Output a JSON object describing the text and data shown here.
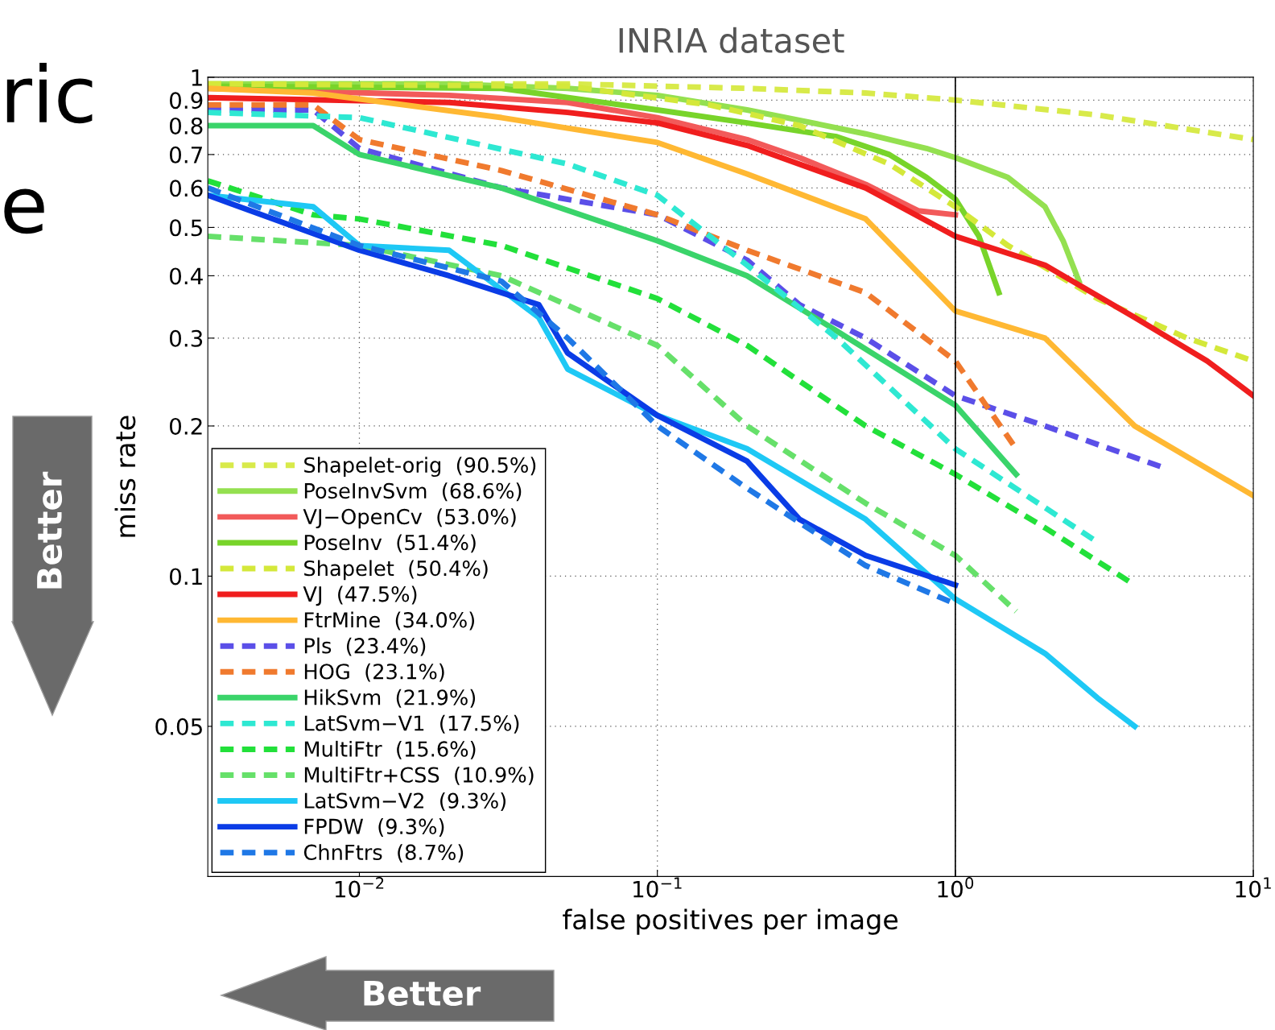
{
  "chart_data": {
    "type": "line",
    "title": "INRIA dataset",
    "xlabel": "false positives per image",
    "ylabel": "miss rate",
    "log": "xy",
    "grid": true,
    "legend": "bottom left",
    "xlim": [
      0.0031,
      10
    ],
    "ylim": [
      0.025,
      1
    ],
    "xticks": [
      {
        "value": 0.01,
        "label": "10$^{−2}$"
      },
      {
        "value": 0.1,
        "label": "10$^{−1}$"
      },
      {
        "value": 1,
        "label": "10$^{0}$"
      },
      {
        "value": 10,
        "label": "10$^{1}$"
      }
    ],
    "yticks": [
      0.05,
      0.1,
      0.2,
      0.3,
      0.4,
      0.5,
      0.6,
      0.7,
      0.8,
      0.9,
      1
    ],
    "ref_lines": [
      {
        "axis": "x",
        "value": 1,
        "color": "#000000"
      }
    ],
    "annotations": [
      "Better",
      "Better",
      "ric",
      "e"
    ],
    "series": [
      {
        "name": "Shapelet-orig  (90.5%)",
        "color": "#d8ea4a",
        "line_style": "dashed",
        "x": [
          0.0031,
          0.05,
          0.2,
          0.5,
          1,
          3,
          10
        ],
        "values": [
          0.97,
          0.97,
          0.95,
          0.93,
          0.9,
          0.84,
          0.75
        ]
      },
      {
        "name": "PoseInvSvm  (68.6%)",
        "color": "#94e050",
        "line_style": "solid",
        "x": [
          0.0031,
          0.02,
          0.05,
          0.1,
          0.2,
          0.3,
          0.5,
          0.8,
          1,
          1.5,
          2,
          2.3,
          2.6
        ],
        "values": [
          0.97,
          0.97,
          0.95,
          0.92,
          0.86,
          0.82,
          0.77,
          0.72,
          0.69,
          0.63,
          0.55,
          0.47,
          0.39
        ]
      },
      {
        "name": "VJ−OpenCv  (53.0%)",
        "color": "#f25a5a",
        "line_style": "solid",
        "x": [
          0.0031,
          0.02,
          0.05,
          0.1,
          0.2,
          0.3,
          0.5,
          0.75,
          1
        ],
        "values": [
          0.95,
          0.92,
          0.89,
          0.83,
          0.75,
          0.69,
          0.61,
          0.54,
          0.53
        ]
      },
      {
        "name": "PoseInv  (51.4%)",
        "color": "#78d42a",
        "line_style": "solid",
        "x": [
          0.0031,
          0.03,
          0.1,
          0.2,
          0.4,
          0.6,
          0.8,
          1,
          1.2,
          1.4
        ],
        "values": [
          0.96,
          0.95,
          0.86,
          0.81,
          0.76,
          0.7,
          0.63,
          0.57,
          0.48,
          0.37
        ]
      },
      {
        "name": "Shapelet  (50.4%)",
        "color": "#d4e83a",
        "line_style": "dashed",
        "x": [
          0.0031,
          0.05,
          0.15,
          0.3,
          0.6,
          1,
          1.5,
          3,
          6,
          10
        ],
        "values": [
          0.97,
          0.96,
          0.88,
          0.8,
          0.67,
          0.55,
          0.46,
          0.36,
          0.3,
          0.27
        ]
      },
      {
        "name": "VJ  (47.5%)",
        "color": "#f01e1e",
        "line_style": "solid",
        "x": [
          0.0031,
          0.02,
          0.05,
          0.1,
          0.2,
          0.5,
          1,
          2,
          4,
          7,
          10
        ],
        "values": [
          0.91,
          0.89,
          0.85,
          0.81,
          0.73,
          0.6,
          0.48,
          0.42,
          0.33,
          0.27,
          0.23
        ]
      },
      {
        "name": "FtrMine  (34.0%)",
        "color": "#ffb833",
        "line_style": "solid",
        "x": [
          0.0031,
          0.007,
          0.03,
          0.1,
          0.2,
          0.5,
          1,
          2,
          4,
          10
        ],
        "values": [
          0.95,
          0.93,
          0.83,
          0.74,
          0.64,
          0.52,
          0.34,
          0.3,
          0.2,
          0.145
        ]
      },
      {
        "name": "Pls  (23.4%)",
        "color": "#5b4fe8",
        "line_style": "dashed",
        "x": [
          0.0031,
          0.007,
          0.01,
          0.03,
          0.1,
          0.2,
          0.3,
          0.5,
          1,
          2,
          5
        ],
        "values": [
          0.86,
          0.86,
          0.72,
          0.6,
          0.53,
          0.43,
          0.35,
          0.3,
          0.23,
          0.2,
          0.165
        ]
      },
      {
        "name": "HOG  (23.1%)",
        "color": "#f07a2e",
        "line_style": "dashed",
        "x": [
          0.0031,
          0.007,
          0.01,
          0.03,
          0.1,
          0.2,
          0.5,
          1,
          1.6
        ],
        "values": [
          0.88,
          0.88,
          0.75,
          0.65,
          0.53,
          0.45,
          0.37,
          0.27,
          0.18
        ]
      },
      {
        "name": "HikSvm  (21.9%)",
        "color": "#3ad46a",
        "line_style": "solid",
        "x": [
          0.0031,
          0.007,
          0.01,
          0.03,
          0.1,
          0.2,
          0.4,
          1,
          1.6
        ],
        "values": [
          0.8,
          0.8,
          0.7,
          0.6,
          0.47,
          0.4,
          0.31,
          0.22,
          0.16
        ]
      },
      {
        "name": "LatSvm−V1  (17.5%)",
        "color": "#2ee8d2",
        "line_style": "dashed",
        "x": [
          0.0031,
          0.01,
          0.05,
          0.1,
          0.2,
          0.4,
          1,
          3
        ],
        "values": [
          0.85,
          0.83,
          0.67,
          0.58,
          0.42,
          0.3,
          0.18,
          0.117
        ]
      },
      {
        "name": "MultiFtr  (15.6%)",
        "color": "#22e03a",
        "line_style": "dashed",
        "x": [
          0.0031,
          0.007,
          0.01,
          0.03,
          0.1,
          0.2,
          0.5,
          1,
          2,
          4
        ],
        "values": [
          0.62,
          0.53,
          0.52,
          0.46,
          0.36,
          0.29,
          0.2,
          0.16,
          0.125,
          0.096
        ]
      },
      {
        "name": "MultiFtr+CSS  (10.9%)",
        "color": "#66e06a",
        "line_style": "dashed",
        "x": [
          0.0031,
          0.01,
          0.03,
          0.1,
          0.2,
          0.5,
          1,
          1.6
        ],
        "values": [
          0.48,
          0.46,
          0.4,
          0.29,
          0.2,
          0.14,
          0.11,
          0.085
        ]
      },
      {
        "name": "LatSvm−V2  (9.3%)",
        "color": "#1ec8f5",
        "line_style": "solid",
        "x": [
          0.0031,
          0.007,
          0.01,
          0.02,
          0.04,
          0.05,
          0.1,
          0.2,
          0.5,
          1,
          2,
          3,
          4
        ],
        "values": [
          0.58,
          0.55,
          0.46,
          0.45,
          0.33,
          0.26,
          0.21,
          0.18,
          0.13,
          0.09,
          0.07,
          0.057,
          0.05
        ]
      },
      {
        "name": "FPDW  (9.3%)",
        "color": "#0a3ce6",
        "line_style": "solid",
        "x": [
          0.0031,
          0.01,
          0.02,
          0.04,
          0.05,
          0.1,
          0.2,
          0.3,
          0.5,
          1
        ],
        "values": [
          0.58,
          0.45,
          0.4,
          0.35,
          0.28,
          0.21,
          0.17,
          0.13,
          0.11,
          0.096
        ]
      },
      {
        "name": "ChnFtrs  (8.7%)",
        "color": "#1f78e6",
        "line_style": "dashed",
        "x": [
          0.0031,
          0.01,
          0.03,
          0.05,
          0.1,
          0.2,
          0.5,
          1
        ],
        "values": [
          0.6,
          0.46,
          0.39,
          0.3,
          0.2,
          0.15,
          0.105,
          0.088
        ]
      }
    ]
  }
}
